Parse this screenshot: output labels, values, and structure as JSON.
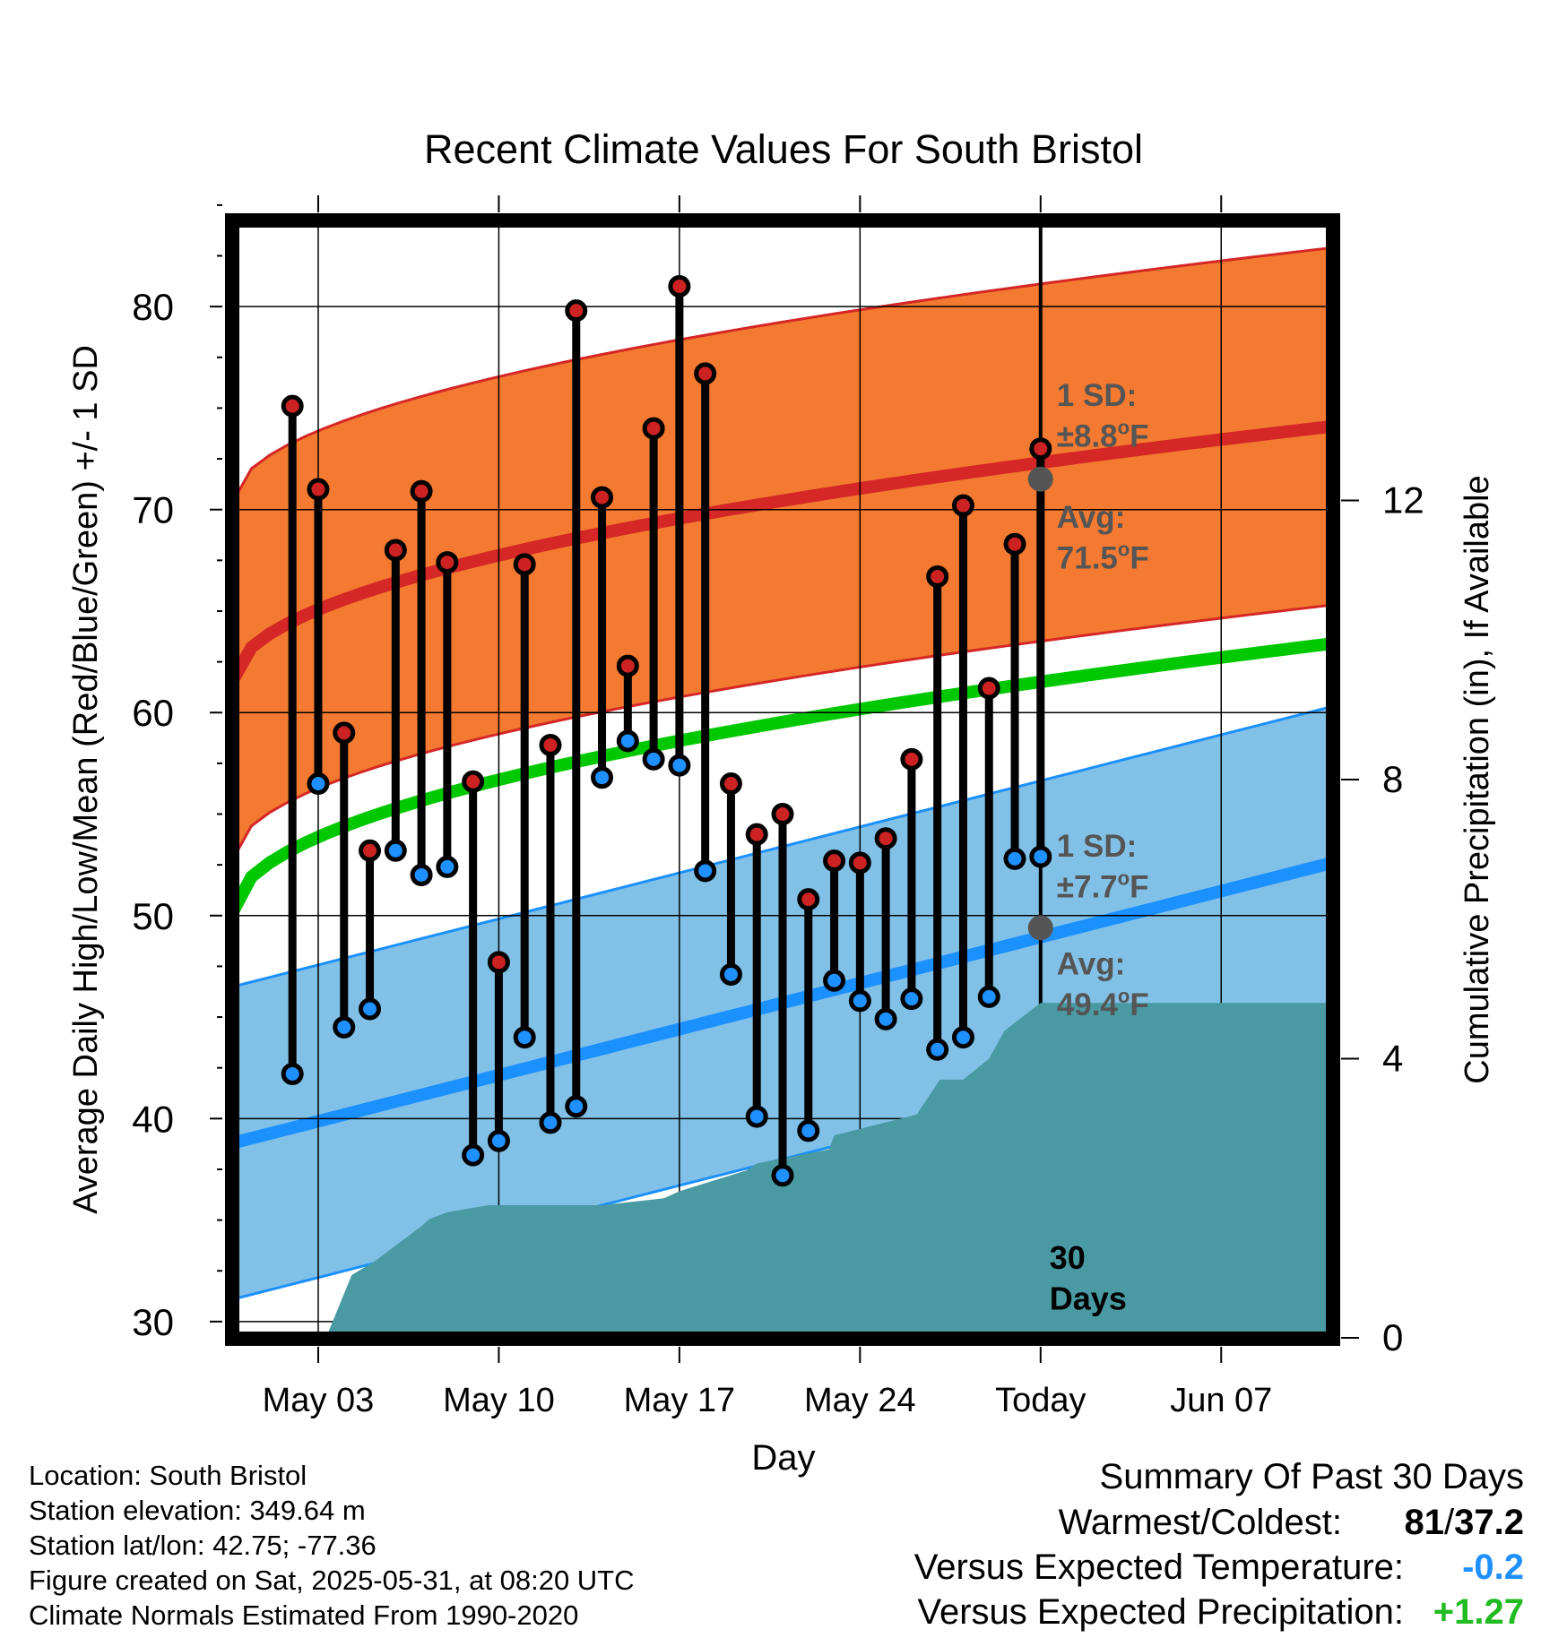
{
  "chart_data": {
    "type": "line",
    "title": "Recent Climate Values For South Bristol",
    "xlabel": "Day",
    "ylabel": "Average Daily High/Low/Mean (Red/Blue/Green) +/- 1 SD",
    "y2label": "Cumulative Precipitation (in), If Available",
    "ylim": [
      29.2,
      84.2
    ],
    "y_ticks": [
      "30",
      "40",
      "50",
      "60",
      "70",
      "80"
    ],
    "y2lim": [
      0,
      16
    ],
    "y2_ticks": [
      "0",
      "4",
      "8",
      "12"
    ],
    "xlim": [
      -2.3,
      40.3
    ],
    "x_tick_labels": [
      {
        "day": 1,
        "label": "May 03"
      },
      {
        "day": 8,
        "label": "May 10"
      },
      {
        "day": 15,
        "label": "May 17"
      },
      {
        "day": 22,
        "label": "May 24"
      },
      {
        "day": 29,
        "label": "Today"
      },
      {
        "day": 36,
        "label": "Jun 07"
      }
    ],
    "x_axis_note": "x = day number where 0 = May 02 and 29 = Today (May 31)",
    "highs": [
      75.1,
      71.0,
      59.0,
      53.2,
      68.0,
      70.9,
      67.4,
      56.6,
      47.7,
      67.3,
      58.4,
      79.8,
      70.6,
      62.3,
      74.0,
      81.0,
      76.7,
      56.5,
      54.0,
      55.0,
      50.8,
      52.7,
      52.6,
      53.8,
      57.7,
      66.7,
      70.2,
      61.2,
      68.3,
      73.0
    ],
    "lows": [
      42.2,
      56.5,
      44.5,
      45.4,
      53.2,
      52.0,
      52.4,
      38.2,
      38.9,
      44.0,
      39.8,
      40.6,
      56.8,
      58.6,
      57.7,
      57.4,
      52.2,
      47.1,
      40.1,
      37.2,
      39.4,
      46.8,
      45.8,
      44.9,
      45.9,
      43.4,
      44.0,
      46.0,
      52.8,
      52.9
    ],
    "normal_high": {
      "start": 61.6,
      "end": 74.1,
      "today": 71.5,
      "sd": 8.8
    },
    "normal_low": {
      "start": 38.8,
      "end": 52.6,
      "today": 49.4,
      "sd": 7.7
    },
    "normal_mean": {
      "start": 50.2,
      "end": 63.4
    },
    "precip_cumulative": {
      "days": [
        -2.3,
        1.3,
        2.3,
        3.2,
        5.0,
        5.3,
        6.0,
        7.6,
        7.8,
        11.0,
        12.0,
        14.4,
        15.0,
        17.6,
        18.0,
        20.8,
        21.0,
        24.2,
        25.1,
        26.0,
        27.0,
        27.6,
        29.0,
        40.3
      ],
      "values": [
        0,
        0,
        0.9,
        1.1,
        1.6,
        1.7,
        1.8,
        1.9,
        1.9,
        1.9,
        1.9,
        2.0,
        2.1,
        2.4,
        2.5,
        2.7,
        2.9,
        3.2,
        3.7,
        3.7,
        4.0,
        4.4,
        4.8,
        4.8
      ]
    },
    "annotations": {
      "high_sd": [
        "1 SD:",
        "±8.8",
        "o",
        "F"
      ],
      "high_avg": [
        "Avg:",
        "71.5",
        "o",
        "F"
      ],
      "low_sd": [
        "1 SD:",
        "±7.7",
        "o",
        "F"
      ],
      "low_avg": [
        "Avg:",
        "49.4",
        "o",
        "F"
      ],
      "period": [
        "30",
        "Days"
      ]
    },
    "colors": {
      "high_band": "#f37a30",
      "high_line": "#d42726",
      "low_band": "#82c1e7",
      "low_line": "#1b90ff",
      "mean_line": "#00c800",
      "precip_fill": "#499aa3",
      "high_dot": "#cc2222",
      "low_dot": "#1e90ff",
      "annotation": "#555555"
    },
    "grid": true
  },
  "footer": {
    "location": "Location: South Bristol",
    "elevation": "Station elevation: 349.64 m",
    "latlon": "Station lat/lon: 42.75; -77.36",
    "created": "Figure created on Sat, 2025-05-31, at 08:20 UTC",
    "normals": "Climate Normals Estimated From 1990-2020"
  },
  "summary": {
    "title": "Summary Of Past 30 Days",
    "warm_label": "Warmest/Coldest:",
    "warm_high": "81",
    "warm_sep": "/",
    "warm_low": "37.2",
    "temp_label": "Versus Expected Temperature:",
    "temp_value": "-0.2",
    "temp_color": "#1e90ff",
    "precip_label": "Versus Expected Precipitation:",
    "precip_value": "+1.27",
    "precip_color": "#22bb22"
  }
}
